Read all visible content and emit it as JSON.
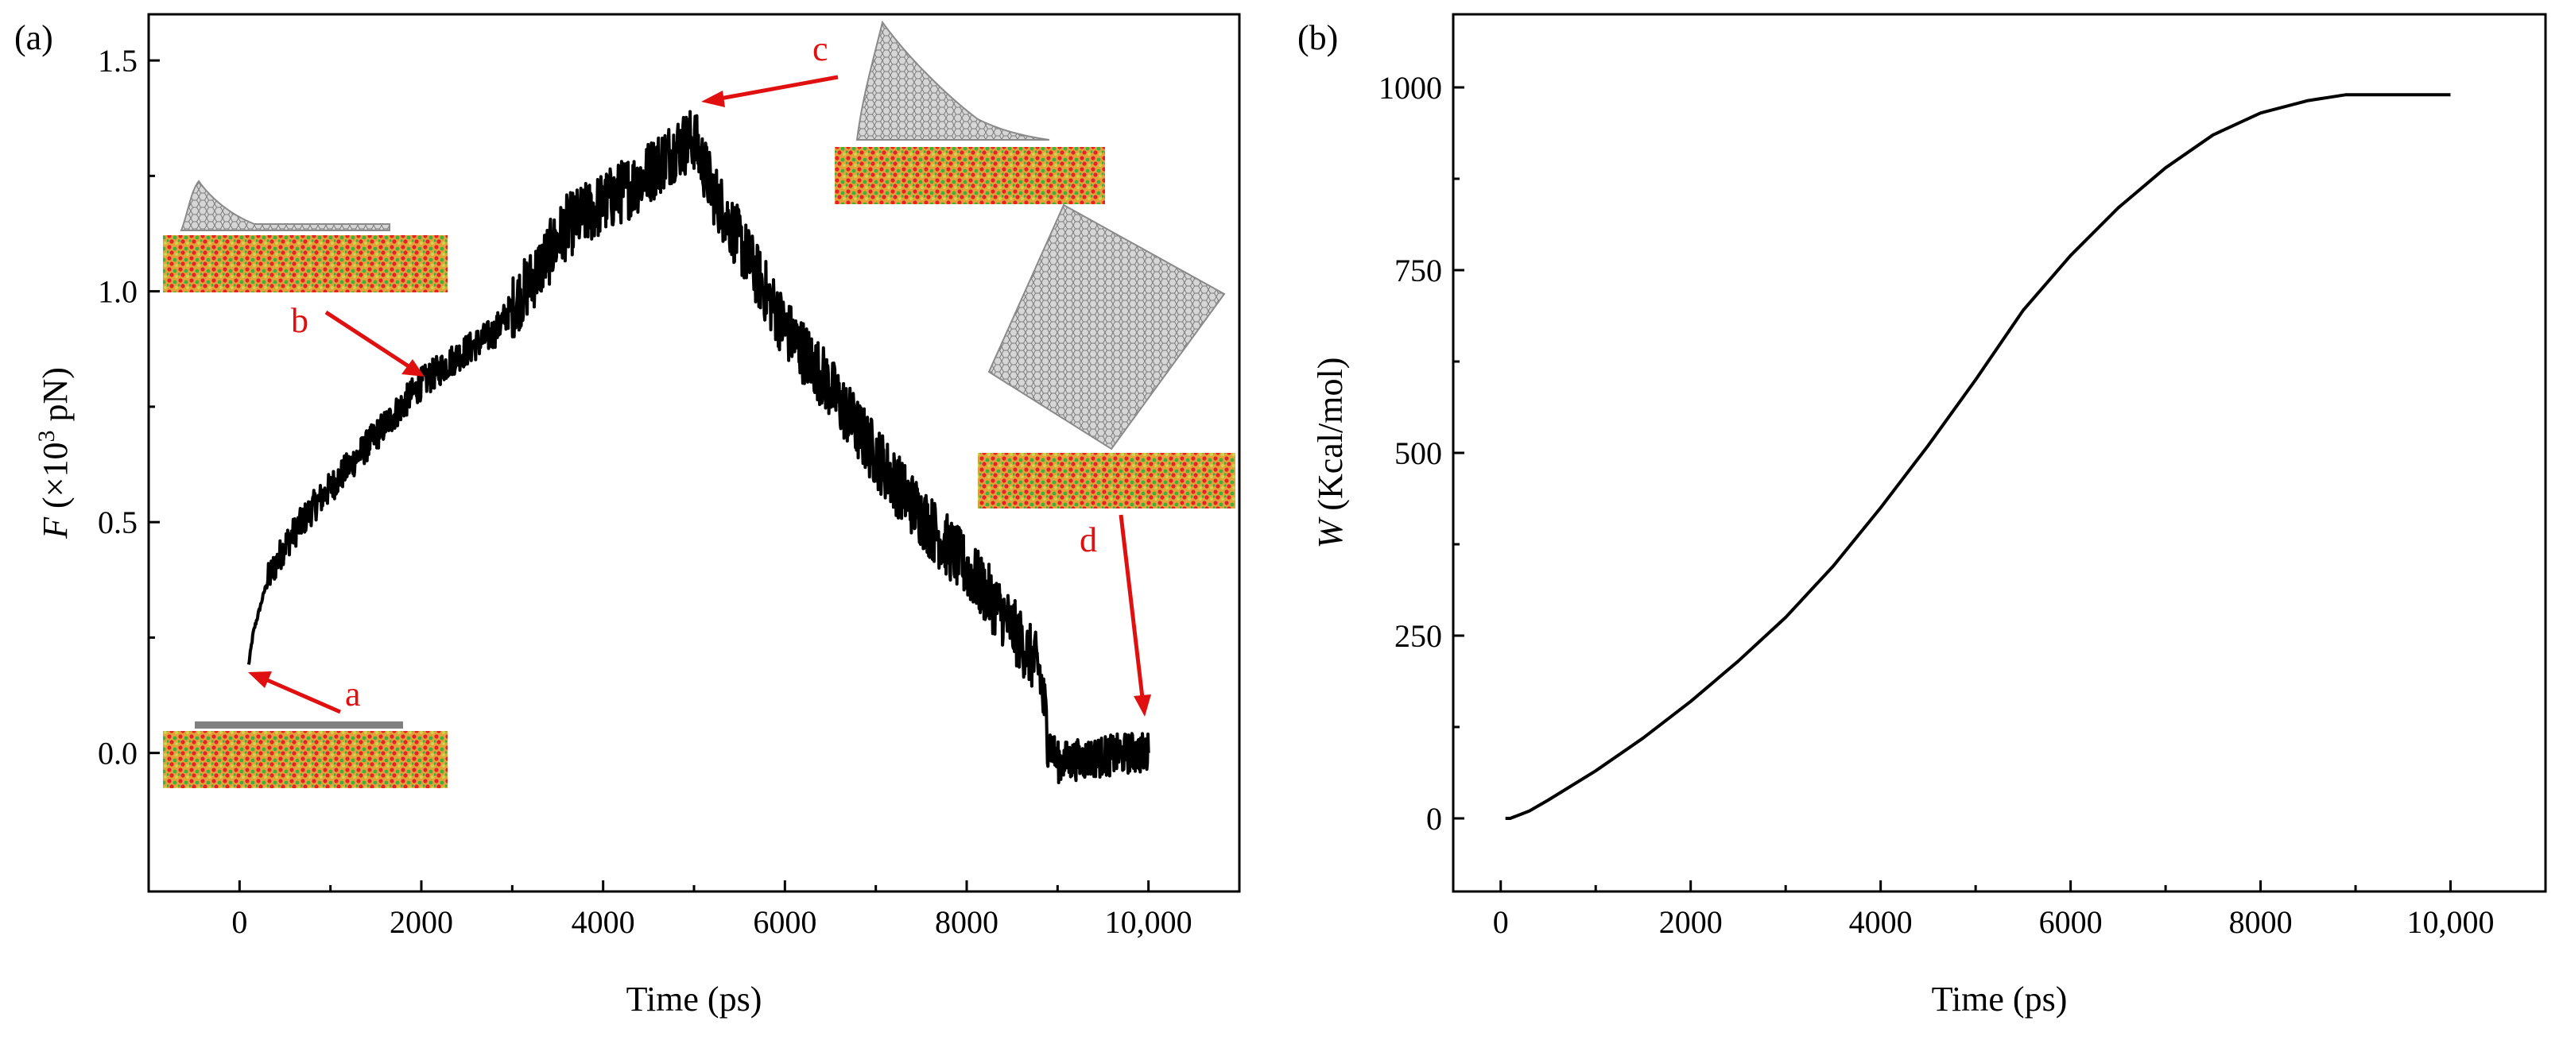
{
  "chart_data": [
    {
      "type": "line",
      "panel_label": "(a)",
      "xlabel": "Time (ps)",
      "ylabel": {
        "var": "F",
        "prefix": " (×10",
        "exp": "3",
        "suffix": " pN)"
      },
      "xlim": [
        -1000,
        11000
      ],
      "ylim": [
        -0.3,
        1.6
      ],
      "xticks": [
        0,
        2000,
        4000,
        6000,
        8000,
        10000
      ],
      "xtick_labels": [
        "0",
        "2000",
        "4000",
        "6000",
        "8000",
        "10,000"
      ],
      "yticks": [
        0.0,
        0.5,
        1.0,
        1.5
      ],
      "ytick_labels": [
        "0.0",
        "0.5",
        "1.0",
        "1.5"
      ],
      "series": [
        {
          "name": "F",
          "style": "noisy",
          "x": [
            100,
            150,
            300,
            500,
            800,
            1200,
            1600,
            2000,
            2400,
            2800,
            3200,
            3600,
            4000,
            4400,
            4800,
            5000,
            5200,
            5600,
            6000,
            6400,
            6800,
            7200,
            7600,
            8000,
            8400,
            8800,
            8900,
            9000,
            9400,
            9800,
            10000
          ],
          "y": [
            0.19,
            0.26,
            0.37,
            0.45,
            0.53,
            0.62,
            0.71,
            0.8,
            0.86,
            0.91,
            1.02,
            1.14,
            1.19,
            1.24,
            1.31,
            1.33,
            1.22,
            1.07,
            0.92,
            0.82,
            0.7,
            0.59,
            0.49,
            0.4,
            0.3,
            0.18,
            0.03,
            -0.02,
            -0.01,
            0.0,
            0.0
          ]
        }
      ],
      "annotations": [
        {
          "label": "a",
          "x": 100,
          "y": 0.19
        },
        {
          "label": "b",
          "x": 2000,
          "y": 0.8
        },
        {
          "label": "c",
          "x": 5000,
          "y": 1.41
        },
        {
          "label": "d",
          "x": 9950,
          "y": 0.07
        }
      ]
    },
    {
      "type": "line",
      "panel_label": "(b)",
      "xlabel": "Time (ps)",
      "ylabel": {
        "var": "W",
        "suffix": " (Kcal/mol)"
      },
      "xlim": [
        -500,
        11000
      ],
      "ylim": [
        -100,
        1100
      ],
      "xticks": [
        0,
        2000,
        4000,
        6000,
        8000,
        10000
      ],
      "xtick_labels": [
        "0",
        "2000",
        "4000",
        "6000",
        "8000",
        "10,000"
      ],
      "yticks": [
        0,
        250,
        500,
        750,
        1000
      ],
      "ytick_labels": [
        "0",
        "250",
        "500",
        "750",
        "1000"
      ],
      "series": [
        {
          "name": "W",
          "style": "smooth",
          "x": [
            50,
            100,
            300,
            500,
            1000,
            1500,
            2000,
            2500,
            3000,
            3500,
            4000,
            4500,
            5000,
            5500,
            6000,
            6500,
            7000,
            7500,
            8000,
            8500,
            8900,
            9200,
            9600,
            10000
          ],
          "y": [
            0,
            0,
            10,
            25,
            65,
            110,
            160,
            215,
            275,
            345,
            425,
            510,
            600,
            695,
            770,
            835,
            890,
            935,
            965,
            982,
            990,
            990,
            990,
            990
          ]
        }
      ]
    }
  ]
}
